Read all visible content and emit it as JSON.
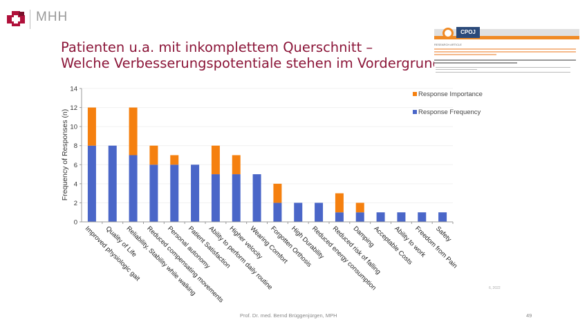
{
  "header": {
    "logo_text": "MHH",
    "brand_color": "#b0103a"
  },
  "slide": {
    "title_line1": "Patienten u.a. mit inkomplettem Querschnitt –",
    "title_line2": "Welche Verbesserungspotentiale stehen im Vordergrund?",
    "title_color": "#8b1538",
    "paper_thumbnail": {
      "journal": "CPOJ",
      "section": "RESEARCH ARTICLE"
    },
    "source_note": "6, 2022"
  },
  "footer": {
    "author": "Prof. Dr. med. Bernd Brüggenjürgen, MPH",
    "page_number": "49"
  },
  "chart_data": {
    "type": "bar",
    "stacked": true,
    "title": "",
    "xlabel": "",
    "ylabel": "Frequency of Responses (n)",
    "ylim": [
      0,
      14
    ],
    "yticks": [
      0,
      2,
      4,
      6,
      8,
      10,
      12,
      14
    ],
    "grid": true,
    "legend_position": "top-right",
    "categories": [
      "Improved physiologic gait",
      "Quality of Life",
      "Reliability, Stability while walking",
      "Reduced compensating movements",
      "Personal autonomy",
      "Patient Satisfaction",
      "Ability to perform daily routine",
      "Higher velocity",
      "Wearing Comfort",
      "Forgotten Orthosis",
      "High Durability",
      "Reduced energy consumption",
      "Reduced risk of falling",
      "Damping",
      "Acceptable Costs",
      "Ability to work",
      "Freedom from Pain",
      "Safety"
    ],
    "series": [
      {
        "name": "Response Frequency",
        "color": "#4a66c8",
        "values": [
          8,
          8,
          7,
          6,
          6,
          6,
          5,
          5,
          5,
          2,
          2,
          2,
          1,
          1,
          1,
          1,
          1,
          1
        ]
      },
      {
        "name": "Response Importance",
        "color": "#f5800f",
        "values": [
          4,
          0,
          5,
          2,
          1,
          0,
          3,
          2,
          0,
          2,
          0,
          0,
          2,
          1,
          0,
          0,
          0,
          0
        ]
      }
    ],
    "legend_order": [
      "Response Importance",
      "Response Frequency"
    ]
  }
}
